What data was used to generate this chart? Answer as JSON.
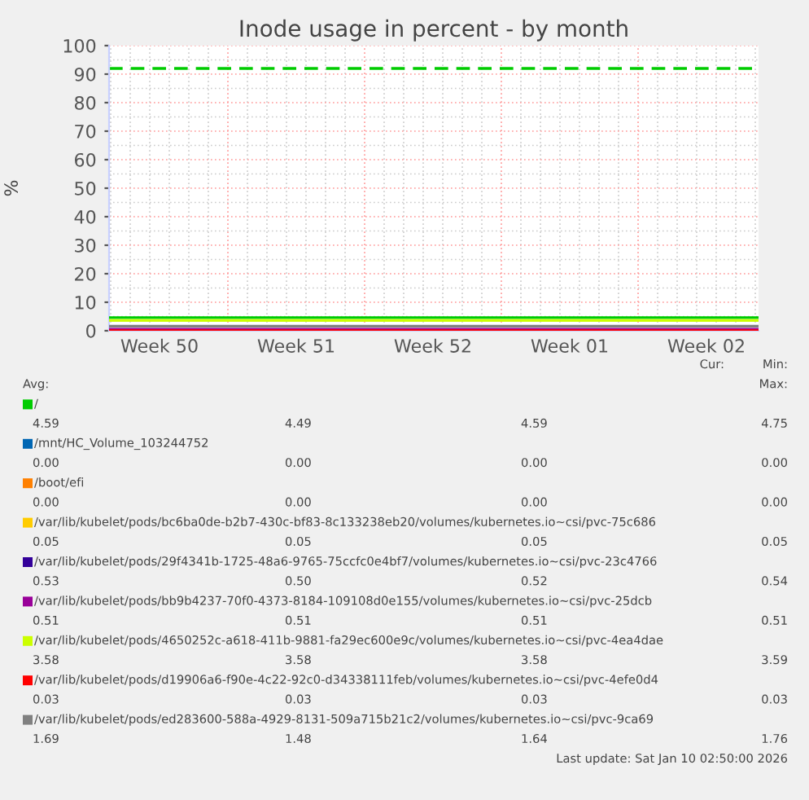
{
  "chart_data": {
    "type": "line",
    "title": "Inode usage in percent - by month",
    "ylabel": "%",
    "x": [
      "2025-12-08T22:00",
      "2026-01-11T04:00"
    ],
    "series": [
      {
        "name": "/",
        "color": "#00cc00",
        "values": [
          4.6,
          4.6
        ]
      },
      {
        "name": "/mnt/HC_Volume_103244752",
        "color": "#0066b3",
        "values": [
          null,
          null
        ]
      },
      {
        "name": "/boot/efi",
        "color": "#ff8000",
        "values": [
          null,
          null
        ]
      },
      {
        "name": "/var/lib/kubelet/pods/bc6ba0de-b2b7-430c-bf83-8c133238eb20/volumes/kubernetes.io~csi/pvc-75c686",
        "color": "#ffcc00",
        "values": [
          null,
          null
        ]
      },
      {
        "name": "/var/lib/kubelet/pods/29f4341b-1725-48a6-9765-75ccfc0e4bf7/volumes/kubernetes.io~csi/pvc-23c4766",
        "color": "#330099",
        "values": [
          null,
          null
        ]
      },
      {
        "name": "/var/lib/kubelet/pods/bb9b4237-70f0-4373-8184-109108d0e155/volumes/kubernetes.io~csi/pvc-25dcb",
        "color": "#990099",
        "values": [
          0.5,
          0.5
        ]
      },
      {
        "name": "/var/lib/kubelet/pods/4650252c-a618-411b-9881-fa29ec600e9c/volumes/kubernetes.io~csi/pvc-4ea4dae",
        "color": "#ccff00",
        "values": [
          3.6,
          3.6
        ]
      },
      {
        "name": "/var/lib/kubelet/pods/d19906a6-f90e-4c22-92c0-d34338111feb/volumes/kubernetes.io~csi/pvc-4efe0d4",
        "color": "#ff0000",
        "values": [
          0.0,
          0.0
        ]
      },
      {
        "name": "/var/lib/kubelet/pods/ed283600-588a-4929-8131-509a715b21c2/volumes/kubernetes.io~csi/pvc-9ca69",
        "color": "#808080",
        "values": [
          1.6,
          1.6
        ]
      }
    ],
    "ylim": [
      0,
      100
    ],
    "yticks": [
      0,
      10,
      20,
      30,
      40,
      50,
      60,
      70,
      80,
      90,
      100
    ],
    "xlim": [
      "2025-12-08T22:00",
      "2026-01-11T04:00"
    ],
    "xticks": [
      {
        "value": "2025-12-11T12:00",
        "label": "Week 50"
      },
      {
        "value": "2025-12-18T12:00",
        "label": "Week 51"
      },
      {
        "value": "2025-12-25T12:00",
        "label": "Week 52"
      },
      {
        "value": "2026-01-01T12:00",
        "label": "Week 01"
      },
      {
        "value": "2026-01-08T12:00",
        "label": "Week 02"
      }
    ],
    "ref_lines": [
      {
        "axis": "y",
        "value": 92,
        "color": "#00cc00",
        "line_style": "dashed"
      }
    ],
    "grid": true,
    "legend": "bottom",
    "marker": "none",
    "line_style": "solid",
    "annotations": [
      "Cur:",
      "Min:",
      "Avg:",
      "Max:",
      "4.59",
      "4.49",
      "4.59",
      "4.75",
      "0.00",
      "0.00",
      "0.00",
      "0.00",
      "0.00",
      "0.00",
      "0.00",
      "0.00",
      "0.05",
      "0.05",
      "0.05",
      "0.05",
      "0.53",
      "0.50",
      "0.52",
      "0.54",
      "0.51",
      "0.51",
      "0.51",
      "0.51",
      "3.58",
      "3.58",
      "3.58",
      "3.59",
      "0.03",
      "0.03",
      "0.03",
      "0.03",
      "1.69",
      "1.48",
      "1.64",
      "1.76",
      "Last update: Sat Jan 10 02:50:00 2026"
    ]
  }
}
